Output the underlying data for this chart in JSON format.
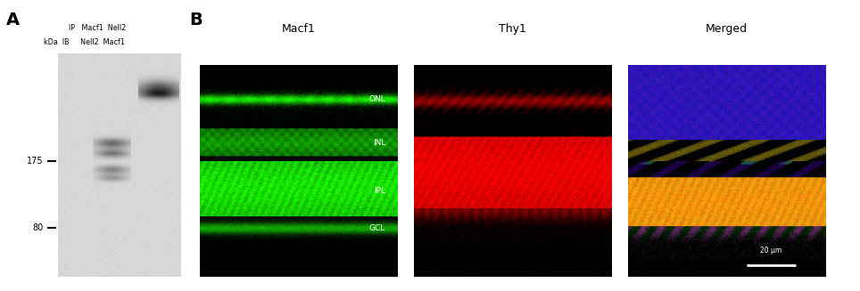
{
  "panel_A_label": "A",
  "panel_B_label": "B",
  "col_header_row1": "IP   Macf1  Nell2",
  "col_header_row2": "kDa  IB     Nell2  Macf1",
  "marker_175": "175",
  "marker_80": "80",
  "title_macf1": "Macf1",
  "title_thy1": "Thy1",
  "title_merged": "Merged",
  "layer_labels": [
    "ONL",
    "INL",
    "IPL",
    "GCL"
  ],
  "scale_bar_text": "20 μm",
  "bg_color": "#ffffff"
}
